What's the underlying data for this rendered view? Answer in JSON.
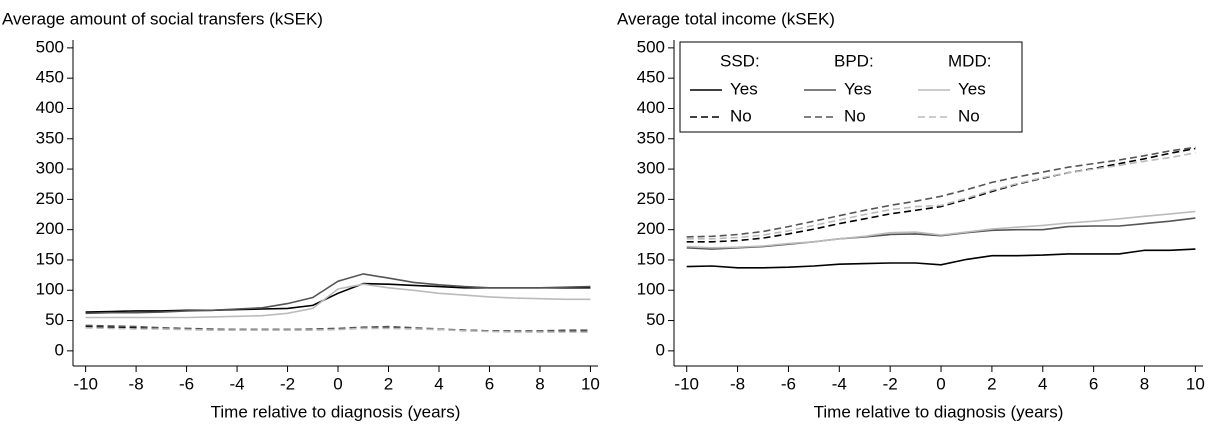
{
  "chart_data": [
    {
      "type": "line",
      "title": "Average amount of social transfers (kSEK)",
      "x_label": "Time relative to diagnosis (years)",
      "x": [
        -10,
        -9,
        -8,
        -7,
        -6,
        -5,
        -4,
        -3,
        -2,
        -1,
        0,
        1,
        2,
        3,
        4,
        5,
        6,
        7,
        8,
        9,
        10
      ],
      "xlim": [
        -10.5,
        10.3
      ],
      "xticks": [
        -10,
        -8,
        -6,
        -4,
        -2,
        0,
        2,
        4,
        6,
        8,
        10
      ],
      "ylim": [
        -25,
        513
      ],
      "yticks": [
        0,
        50,
        100,
        150,
        200,
        250,
        300,
        350,
        400,
        450,
        500
      ],
      "series": [
        {
          "color": "#000000",
          "dash": false,
          "values": [
            64,
            65,
            66,
            66,
            67,
            67,
            68,
            69,
            70,
            75,
            95,
            111,
            110,
            108,
            106,
            104,
            104,
            104,
            104,
            104,
            104
          ]
        },
        {
          "color": "#555555",
          "dash": false,
          "values": [
            62,
            63,
            63,
            64,
            66,
            67,
            69,
            71,
            78,
            88,
            115,
            127,
            120,
            113,
            109,
            106,
            104,
            104,
            104,
            105,
            106
          ]
        },
        {
          "color": "#bbbbbb",
          "dash": false,
          "values": [
            55,
            55,
            55,
            55,
            55,
            56,
            57,
            58,
            62,
            70,
            102,
            110,
            104,
            100,
            95,
            92,
            89,
            87,
            86,
            85,
            85
          ]
        },
        {
          "color": "#000000",
          "dash": true,
          "values": [
            40,
            39,
            38,
            37,
            36,
            35,
            35,
            35,
            35,
            35,
            36,
            38,
            38,
            37,
            35,
            34,
            33,
            32,
            32,
            32,
            32
          ]
        },
        {
          "color": "#555555",
          "dash": true,
          "values": [
            42,
            41,
            40,
            38,
            37,
            36,
            35,
            35,
            35,
            36,
            37,
            39,
            40,
            38,
            36,
            34,
            33,
            33,
            33,
            34,
            34
          ]
        },
        {
          "color": "#bbbbbb",
          "dash": true,
          "values": [
            38,
            37,
            36,
            36,
            35,
            34,
            34,
            34,
            34,
            34,
            35,
            37,
            37,
            36,
            35,
            33,
            32,
            31,
            31,
            31,
            31
          ]
        }
      ]
    },
    {
      "type": "line",
      "title": "Average total income (kSEK)",
      "x_label": "Time relative to diagnosis (years)",
      "x": [
        -10,
        -9,
        -8,
        -7,
        -6,
        -5,
        -4,
        -3,
        -2,
        -1,
        0,
        1,
        2,
        3,
        4,
        5,
        6,
        7,
        8,
        9,
        10
      ],
      "xlim": [
        -10.5,
        10.3
      ],
      "xticks": [
        -10,
        -8,
        -6,
        -4,
        -2,
        0,
        2,
        4,
        6,
        8,
        10
      ],
      "ylim": [
        -25,
        513
      ],
      "yticks": [
        0,
        50,
        100,
        150,
        200,
        250,
        300,
        350,
        400,
        450,
        500
      ],
      "legend": "upper left",
      "legend_titles": [
        "SSD:",
        "BPD:",
        "MDD:"
      ],
      "series": [
        {
          "name": "Yes",
          "color": "#000000",
          "dash": false,
          "values": [
            139,
            140,
            137,
            137,
            138,
            140,
            143,
            144,
            145,
            145,
            142,
            151,
            157,
            157,
            158,
            160,
            160,
            160,
            166,
            166,
            168
          ]
        },
        {
          "name": "Yes",
          "color": "#555555",
          "dash": false,
          "values": [
            170,
            168,
            170,
            172,
            176,
            180,
            185,
            188,
            192,
            193,
            190,
            195,
            199,
            200,
            200,
            205,
            206,
            206,
            210,
            214,
            219
          ]
        },
        {
          "name": "Yes",
          "color": "#bbbbbb",
          "dash": false,
          "values": [
            172,
            170,
            171,
            173,
            177,
            180,
            185,
            189,
            195,
            196,
            191,
            196,
            201,
            204,
            207,
            211,
            214,
            218,
            222,
            226,
            230
          ]
        },
        {
          "name": "No",
          "color": "#000000",
          "dash": true,
          "values": [
            180,
            180,
            182,
            186,
            193,
            201,
            210,
            218,
            226,
            232,
            238,
            250,
            263,
            275,
            285,
            294,
            301,
            309,
            317,
            326,
            334
          ]
        },
        {
          "name": "No",
          "color": "#555555",
          "dash": true,
          "values": [
            188,
            189,
            192,
            197,
            205,
            214,
            223,
            232,
            240,
            247,
            255,
            266,
            278,
            287,
            295,
            303,
            309,
            315,
            322,
            330,
            336
          ]
        },
        {
          "name": "No",
          "color": "#bbbbbb",
          "dash": true,
          "values": [
            185,
            185,
            187,
            191,
            198,
            207,
            216,
            225,
            233,
            238,
            240,
            252,
            265,
            276,
            286,
            294,
            300,
            306,
            313,
            319,
            327
          ]
        }
      ]
    }
  ]
}
